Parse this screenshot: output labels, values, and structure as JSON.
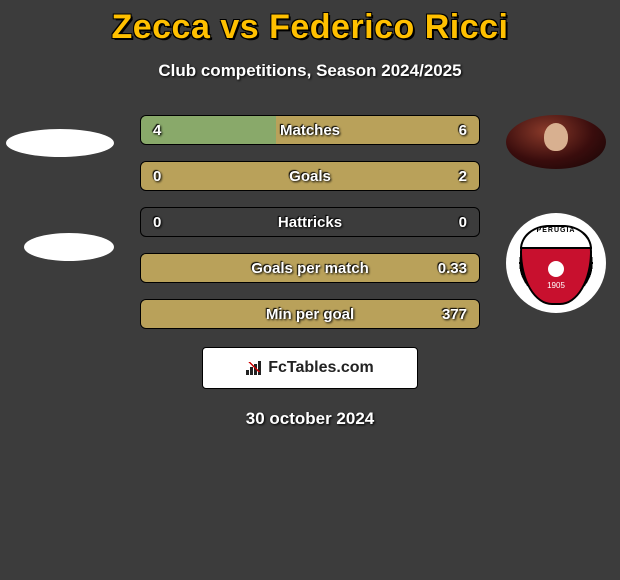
{
  "title": "Zecca vs Federico Ricci",
  "subtitle": "Club competitions, Season 2024/2025",
  "date": "30 october 2024",
  "brand": "FcTables.com",
  "colors": {
    "accent": "#ffc000",
    "left_fill": "#89a96a",
    "right_fill": "#b9a15a",
    "background": "#3c3c3c",
    "crest_red": "#c8102e"
  },
  "crest": {
    "label": "PERUGIA",
    "year": "1905"
  },
  "rows": [
    {
      "label": "Matches",
      "left": "4",
      "right": "6",
      "left_pct": 40,
      "right_pct": 60
    },
    {
      "label": "Goals",
      "left": "0",
      "right": "2",
      "left_pct": 0,
      "right_pct": 100
    },
    {
      "label": "Hattricks",
      "left": "0",
      "right": "0",
      "left_pct": 0,
      "right_pct": 0
    },
    {
      "label": "Goals per match",
      "left": "",
      "right": "0.33",
      "left_pct": 0,
      "right_pct": 100
    },
    {
      "label": "Min per goal",
      "left": "",
      "right": "377",
      "left_pct": 0,
      "right_pct": 100
    }
  ]
}
